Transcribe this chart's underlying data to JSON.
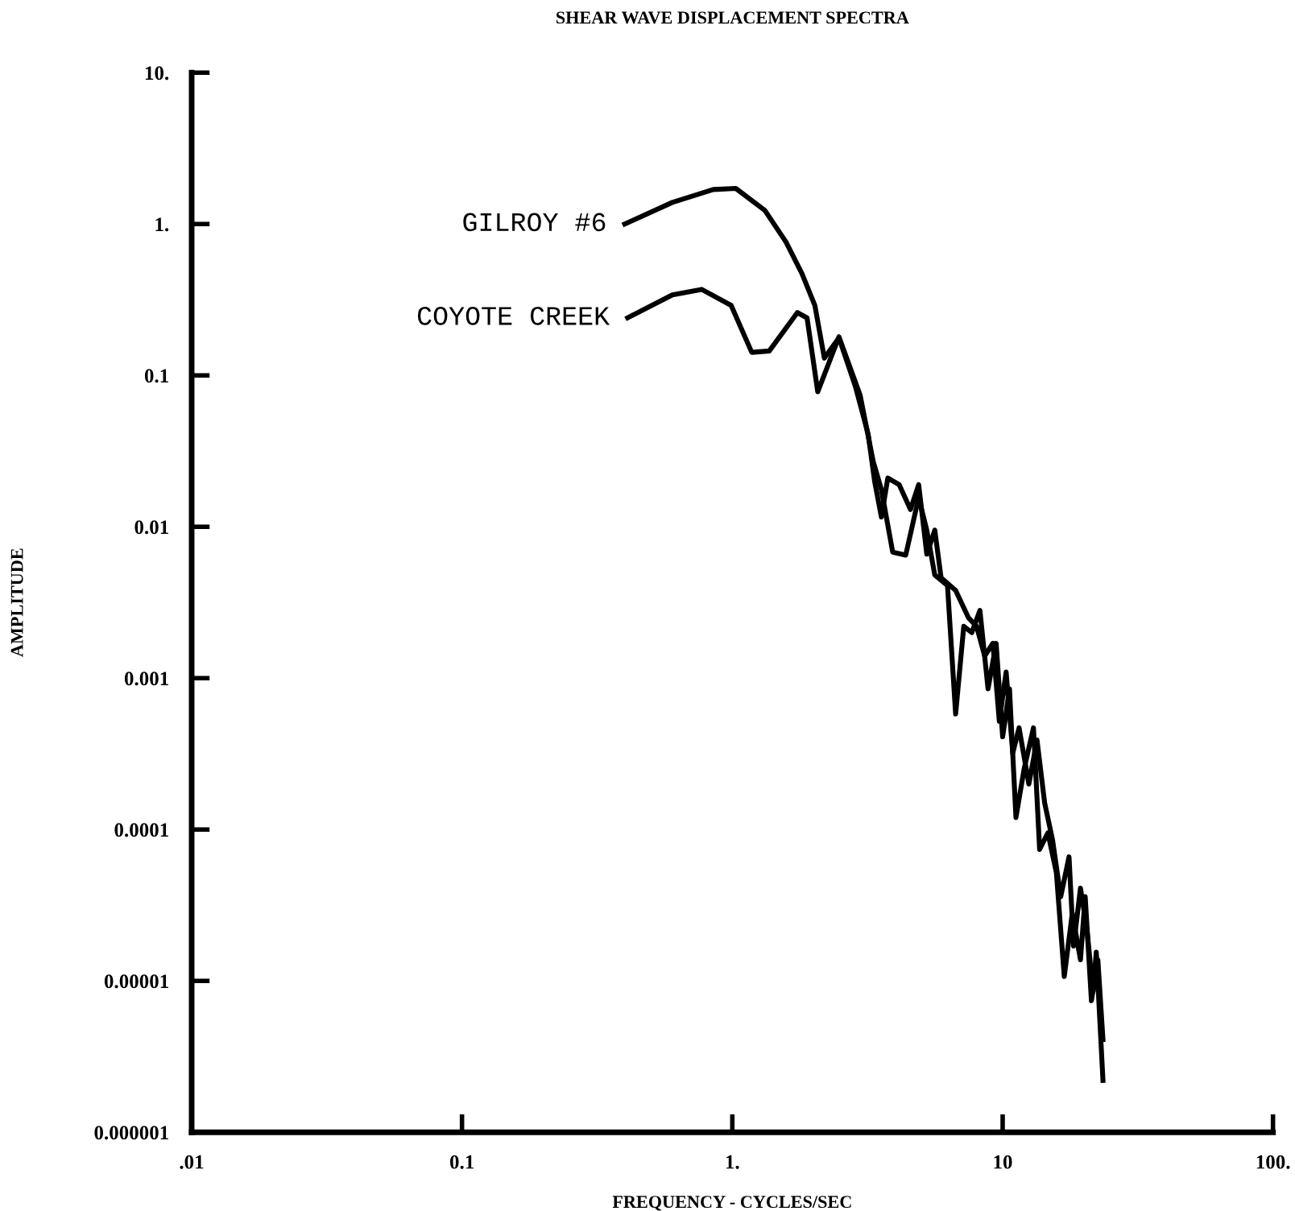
{
  "chart_data": {
    "type": "line",
    "title": "SHEAR WAVE DISPLACEMENT SPECTRA",
    "xlabel": "FREQUENCY - CYCLES/SEC",
    "ylabel": "AMPLITUDE",
    "log": "xy",
    "grid": false,
    "legend": false,
    "marker": "none",
    "line_style": "solid",
    "xlim": [
      0.01,
      100
    ],
    "ylim": [
      1e-06,
      10
    ],
    "xticks": [
      {
        "value": 0.01,
        "label": ".01"
      },
      0.1,
      {
        "value": 1,
        "label": "1."
      },
      10,
      {
        "value": 100,
        "label": "100."
      }
    ],
    "yticks": [
      {
        "value": 1e-06,
        "label": "0.000001"
      },
      {
        "value": 1e-05,
        "label": "0.00001"
      },
      0.0001,
      0.001,
      0.01,
      0.1,
      {
        "value": 1,
        "label": "1."
      },
      {
        "value": 10,
        "label": "10."
      }
    ],
    "series": [
      {
        "name": "GILROY #6",
        "color": "#000000",
        "x": [
          0.4,
          0.6,
          0.85,
          1.03,
          1.32,
          1.58,
          1.81,
          2.02,
          2.19,
          2.48,
          2.85,
          3.18,
          3.36,
          3.56,
          3.76,
          4.14,
          4.56,
          4.89,
          5.24,
          5.61,
          5.92,
          6.7,
          7.48,
          8.01,
          8.58,
          9.2,
          9.72,
          10.3,
          10.9,
          11.5,
          12.5,
          13.4,
          14.3,
          15.3,
          16.4,
          17.6,
          18.3,
          19.4,
          20.5,
          21.6,
          22.2,
          23.5
        ],
        "values": [
          1.0,
          1.39,
          1.69,
          1.72,
          1.23,
          0.76,
          0.47,
          0.29,
          0.13,
          0.177,
          0.085,
          0.041,
          0.02,
          0.0116,
          0.021,
          0.019,
          0.013,
          0.019,
          0.0066,
          0.0095,
          0.0046,
          0.0038,
          0.0025,
          0.0022,
          0.0014,
          0.0017,
          0.00052,
          0.0011,
          0.00032,
          0.00047,
          0.0002,
          0.00039,
          0.00015,
          8.5e-05,
          3.6e-05,
          6.6e-05,
          1.7e-05,
          4.1e-05,
          2.2e-05,
          8.5e-06,
          1.55e-05,
          2.2e-06
        ]
      },
      {
        "name": "COYOTE CREEK",
        "color": "#000000",
        "x": [
          0.41,
          0.6,
          0.77,
          0.99,
          1.18,
          1.37,
          1.74,
          1.89,
          2.07,
          2.48,
          2.97,
          3.32,
          3.56,
          3.92,
          4.38,
          4.89,
          5.24,
          5.61,
          6.25,
          6.7,
          7.18,
          7.69,
          8.24,
          8.83,
          9.46,
          10.0,
          10.6,
          11.2,
          12.0,
          13.0,
          13.7,
          14.7,
          15.8,
          16.9,
          18.1,
          19.4,
          20.2,
          21.3,
          22.5,
          23.5
        ],
        "values": [
          0.24,
          0.34,
          0.37,
          0.29,
          0.142,
          0.145,
          0.26,
          0.24,
          0.078,
          0.18,
          0.074,
          0.027,
          0.0176,
          0.0068,
          0.0065,
          0.0156,
          0.0095,
          0.0048,
          0.0041,
          0.00058,
          0.0022,
          0.002,
          0.0028,
          0.00085,
          0.0017,
          0.00041,
          0.00085,
          0.00012,
          0.00025,
          0.00047,
          7.4e-05,
          9.5e-05,
          5.2e-05,
          1.07e-05,
          2.8e-05,
          1.38e-05,
          3.6e-05,
          7.4e-06,
          1.38e-05,
          4.1e-06
        ]
      }
    ]
  }
}
